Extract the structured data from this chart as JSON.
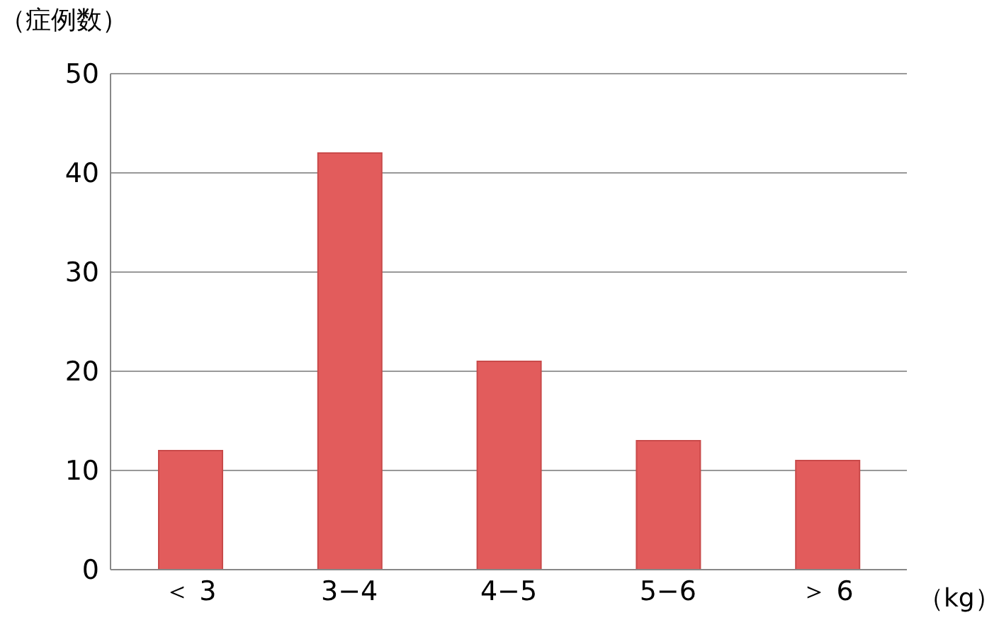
{
  "chart_data": {
    "type": "bar",
    "ylabel": "（症例数）",
    "xlabel": "（kg）",
    "categories": [
      "＜ 3",
      "3−4",
      "4−5",
      "5−6",
      "＞ 6"
    ],
    "values": [
      12,
      42,
      21,
      13,
      11
    ],
    "color": "#e25c5c",
    "ylim": [
      0,
      50
    ],
    "yticks": [
      0,
      10,
      20,
      30,
      40,
      50
    ],
    "grid": "y"
  }
}
